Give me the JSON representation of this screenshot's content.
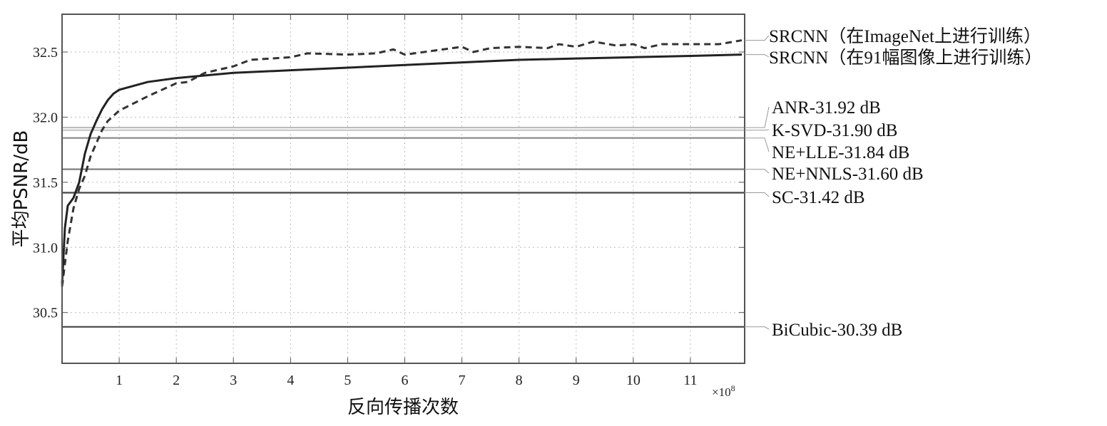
{
  "chart_data": {
    "type": "line",
    "title": "",
    "xlabel": "反向传播次数",
    "ylabel": "平均PSNR/dB",
    "x_multiplier_label": "×10",
    "x_multiplier_exponent": "8",
    "xlim": [
      0,
      11.95
    ],
    "ylim": [
      30.11,
      32.79
    ],
    "xticks": [
      1,
      2,
      3,
      4,
      5,
      6,
      7,
      8,
      9,
      10,
      11
    ],
    "xtick_labels": [
      "1",
      "2",
      "3",
      "4",
      "5",
      "6",
      "7",
      "8",
      "9",
      "10",
      "11"
    ],
    "yticks": [
      30.5,
      31.0,
      31.5,
      32.0,
      32.5
    ],
    "ytick_labels": [
      "30.5",
      "31.0",
      "31.5",
      "32.0",
      "32.5"
    ],
    "grid": true,
    "series": [
      {
        "name": "SRCNN（在ImageNet上进行训练）",
        "style": "dashed",
        "color": "#333333",
        "x": [
          0,
          0.1,
          0.2,
          0.3,
          0.4,
          0.5,
          0.6,
          0.7,
          0.8,
          1.0,
          1.5,
          2.0,
          2.2,
          2.5,
          3.0,
          3.3,
          4.0,
          4.3,
          5.0,
          5.5,
          5.8,
          6.0,
          6.5,
          7.0,
          7.2,
          7.5,
          8.0,
          8.5,
          8.7,
          9.0,
          9.3,
          9.7,
          10.0,
          10.2,
          10.5,
          11.0,
          11.5,
          11.9
        ],
        "y": [
          30.7,
          31.05,
          31.3,
          31.45,
          31.55,
          31.7,
          31.8,
          31.9,
          31.97,
          32.05,
          32.16,
          32.26,
          32.27,
          32.34,
          32.39,
          32.44,
          32.46,
          32.49,
          32.48,
          32.49,
          32.52,
          32.48,
          32.51,
          32.54,
          32.5,
          32.53,
          32.54,
          32.53,
          32.56,
          32.54,
          32.58,
          32.55,
          32.56,
          32.53,
          32.56,
          32.56,
          32.56,
          32.59
        ]
      },
      {
        "name": "SRCNN（在91幅图像上进行训练）",
        "style": "solid",
        "color": "#222222",
        "x": [
          0,
          0.05,
          0.1,
          0.2,
          0.3,
          0.4,
          0.5,
          0.6,
          0.7,
          0.8,
          0.9,
          1.0,
          1.5,
          2.0,
          3.0,
          4.0,
          5.0,
          5.5,
          6.0,
          7.0,
          8.0,
          9.0,
          10.0,
          11.0,
          11.9
        ],
        "y": [
          30.72,
          31.15,
          31.32,
          31.38,
          31.5,
          31.72,
          31.87,
          31.97,
          32.06,
          32.13,
          32.18,
          32.21,
          32.27,
          32.3,
          32.34,
          32.36,
          32.38,
          32.39,
          32.4,
          32.42,
          32.44,
          32.45,
          32.46,
          32.47,
          32.48
        ]
      }
    ],
    "baselines": [
      {
        "name": "ANR-31.92 dB",
        "value": 31.92,
        "color": "#bbbbbb"
      },
      {
        "name": "K-SVD-31.90 dB",
        "value": 31.9,
        "color": "#c8c8c8"
      },
      {
        "name": "NE+LLE-31.84 dB",
        "value": 31.84,
        "color": "#888888"
      },
      {
        "name": "NE+NNLS-31.60 dB",
        "value": 31.6,
        "color": "#777777"
      },
      {
        "name": "SC-31.42 dB",
        "value": 31.42,
        "color": "#444444"
      },
      {
        "name": "BiCubic-30.39 dB",
        "value": 30.39,
        "color": "#444444"
      }
    ]
  }
}
